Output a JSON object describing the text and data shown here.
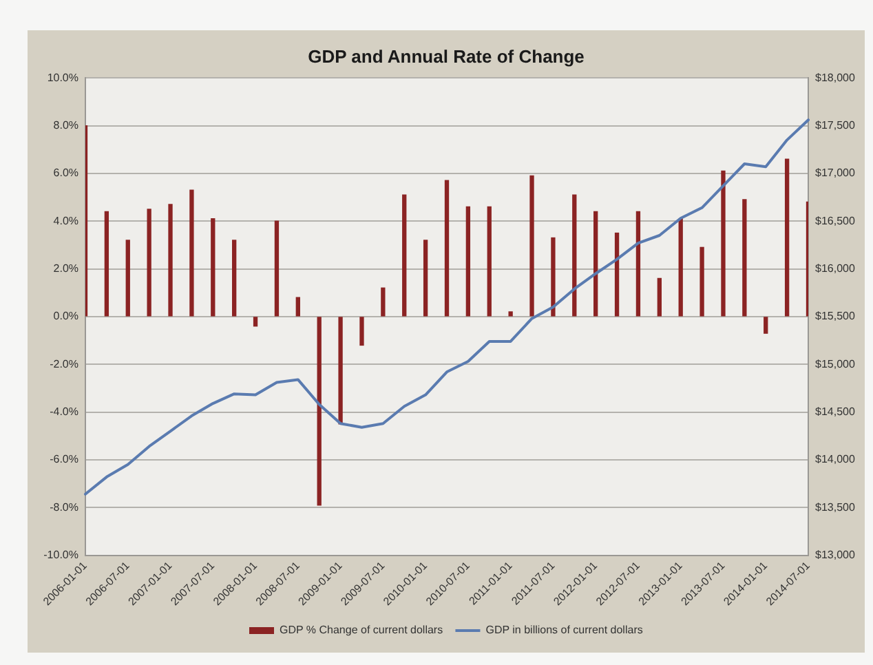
{
  "chart_data": {
    "type": "bar",
    "title": "GDP and Annual Rate of Change",
    "categories": [
      "2006-01-01",
      null,
      "2006-07-01",
      null,
      "2007-01-01",
      null,
      "2007-07-01",
      null,
      "2008-01-01",
      null,
      "2008-07-01",
      null,
      "2009-01-01",
      null,
      "2009-07-01",
      null,
      "2010-01-01",
      null,
      "2010-07-01",
      null,
      "2011-01-01",
      null,
      "2011-07-01",
      null,
      "2012-01-01",
      null,
      "2012-07-01",
      null,
      "2013-01-01",
      null,
      "2013-07-01",
      null,
      "2014-01-01",
      null,
      "2014-07-01"
    ],
    "series": [
      {
        "name": "GDP % Change of current dollars",
        "color": "#8b2323",
        "values": [
          8.0,
          4.4,
          3.2,
          4.5,
          4.7,
          5.3,
          4.1,
          3.2,
          -0.4,
          4.0,
          0.8,
          -7.9,
          -4.5,
          -1.2,
          1.2,
          5.1,
          3.2,
          5.7,
          4.6,
          4.6,
          0.2,
          5.9,
          3.3,
          5.1,
          4.4,
          3.5,
          4.4,
          1.6,
          4.1,
          2.9,
          6.1,
          4.9,
          -0.7,
          6.6,
          4.8
        ]
      },
      {
        "name": "GDP in billions of current dollars",
        "type": "line",
        "axis": "y2",
        "color": "#5a7bb0",
        "values": [
          13640,
          13820,
          13950,
          14140,
          14300,
          14460,
          14590,
          14690,
          14680,
          14810,
          14840,
          14580,
          14380,
          14340,
          14380,
          14560,
          14680,
          14920,
          15030,
          15240,
          15240,
          15480,
          15600,
          15790,
          15950,
          16100,
          16270,
          16350,
          16530,
          16640,
          16870,
          17100,
          17070,
          17350,
          17560
        ]
      }
    ],
    "ylim": [
      -10,
      10
    ],
    "yticks": [
      {
        "value": -10,
        "label": "-10.0%"
      },
      {
        "value": -8,
        "label": "-8.0%"
      },
      {
        "value": -6,
        "label": "-6.0%"
      },
      {
        "value": -4,
        "label": "-4.0%"
      },
      {
        "value": -2,
        "label": "-2.0%"
      },
      {
        "value": 0,
        "label": "0.0%"
      },
      {
        "value": 2,
        "label": "2.0%"
      },
      {
        "value": 4,
        "label": "4.0%"
      },
      {
        "value": 6,
        "label": "6.0%"
      },
      {
        "value": 8,
        "label": "8.0%"
      },
      {
        "value": 10,
        "label": "10.0%"
      }
    ],
    "y2lim": [
      13000,
      18000
    ],
    "y2ticks": [
      {
        "value": 13000,
        "label": "$13,000"
      },
      {
        "value": 13500,
        "label": "$13,500"
      },
      {
        "value": 14000,
        "label": "$14,000"
      },
      {
        "value": 14500,
        "label": "$14,500"
      },
      {
        "value": 15000,
        "label": "$15,000"
      },
      {
        "value": 15500,
        "label": "$15,500"
      },
      {
        "value": 16000,
        "label": "$16,000"
      },
      {
        "value": 16500,
        "label": "$16,500"
      },
      {
        "value": 17000,
        "label": "$17,000"
      },
      {
        "value": 17500,
        "label": "$17,500"
      },
      {
        "value": 18000,
        "label": "$18,000"
      }
    ],
    "grid": "y",
    "legend": "bottom",
    "marker": "none"
  }
}
